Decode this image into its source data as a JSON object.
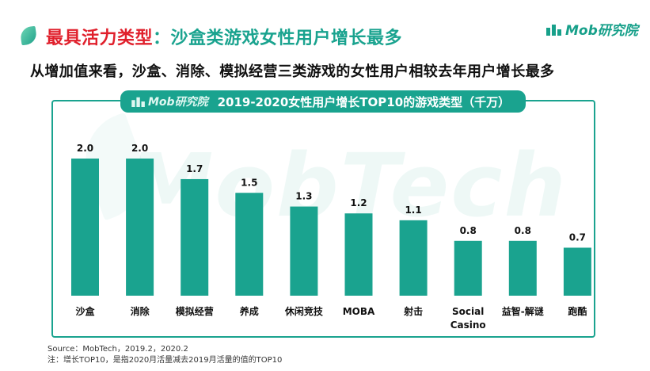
{
  "header": {
    "title_part1": "最具活力类型",
    "title_part2": "：沙盒类游戏女性用户增长最多",
    "subtitle": "从增加值来看，沙盒、消除、模拟经营三类游戏的女性用户相较去年用户增长最多",
    "logo_text": "Mob研究院"
  },
  "chart_header": {
    "logo_text": "Mob研究院",
    "title": "2019-2020女性用户增长TOP10的游戏类型（千万）"
  },
  "watermark": "MobTech",
  "colors": {
    "bar": "#1aa38f",
    "accent": "#e0202c",
    "brand": "#1aa38f"
  },
  "chart_data": {
    "type": "bar",
    "title": "2019-2020女性用户增长TOP10的游戏类型（千万）",
    "categories": [
      "沙盒",
      "消除",
      "模拟经营",
      "养成",
      "休闲竞技",
      "MOBA",
      "射击",
      "Social\nCasino",
      "益智-解谜",
      "跑酷"
    ],
    "values": [
      2.0,
      2.0,
      1.7,
      1.5,
      1.3,
      1.2,
      1.1,
      0.8,
      0.8,
      0.7
    ],
    "value_labels": [
      "2.0",
      "2.0",
      "1.7",
      "1.5",
      "1.3",
      "1.2",
      "1.1",
      "0.8",
      "0.8",
      "0.7"
    ],
    "ylim": [
      0,
      2.0
    ],
    "grid": false,
    "legend": "none"
  },
  "footer": {
    "source": "Source：MobTech，2019.2，2020.2",
    "note": "注：增长TOP10，是指2020月活量减去2019月活量的值的TOP10"
  }
}
